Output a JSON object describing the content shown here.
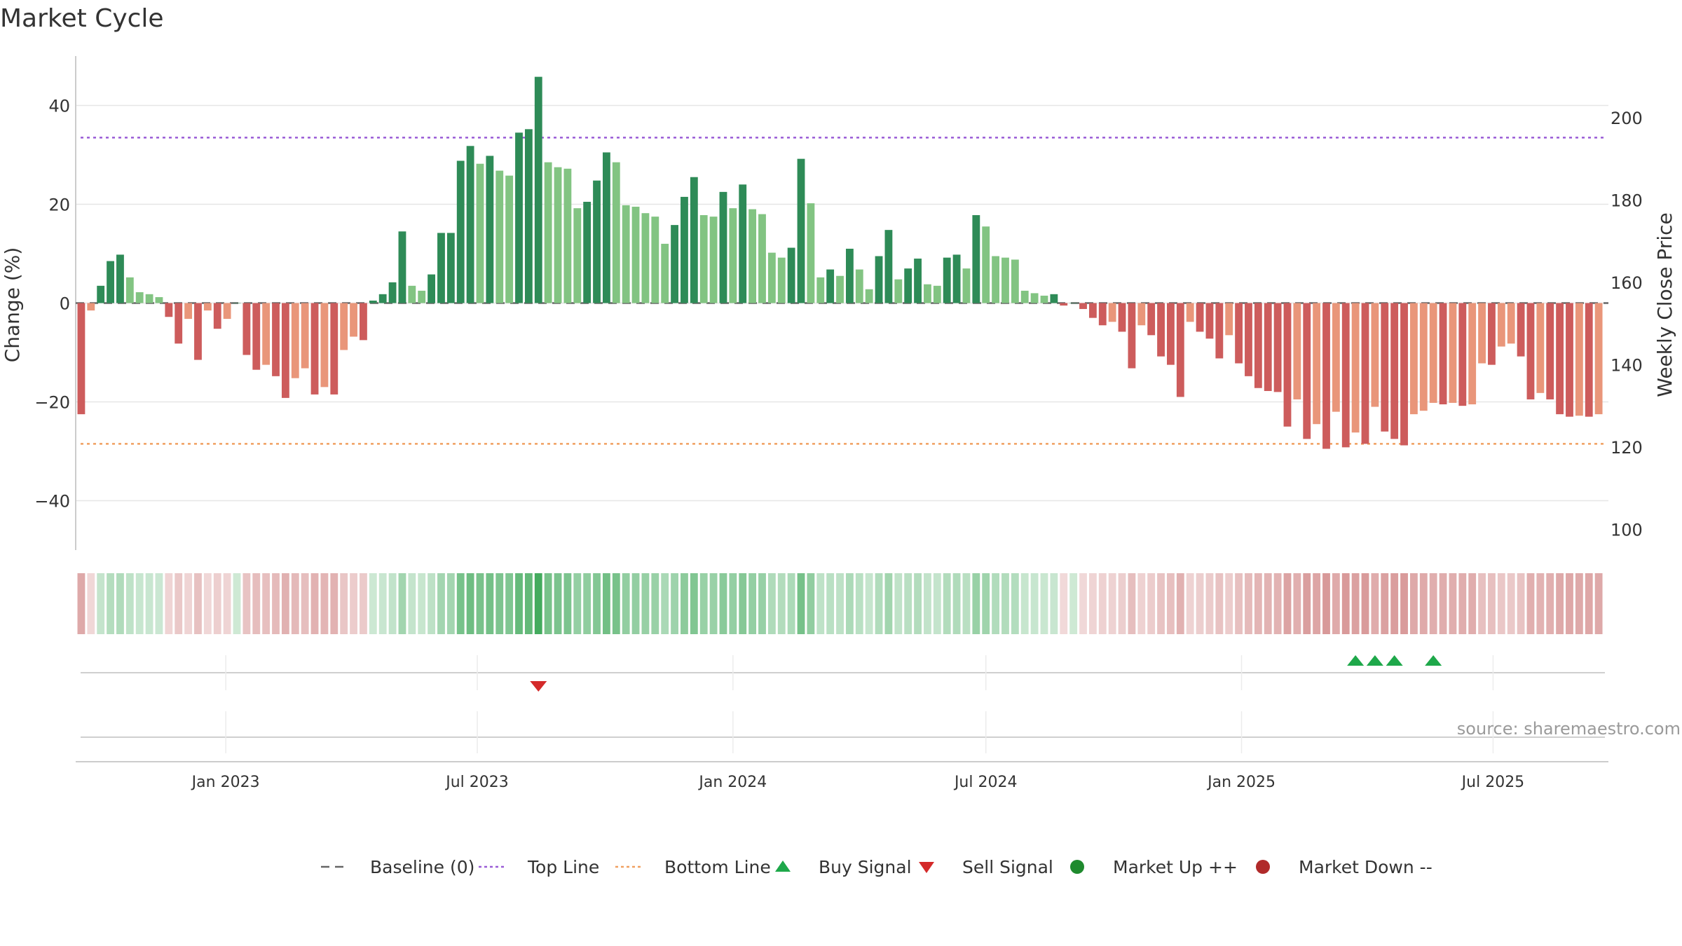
{
  "chart_data": {
    "type": "bar",
    "title": "Market Cycle",
    "ylabel": "Change (%)",
    "y2label": "Weekly Close Price",
    "ylim": [
      -50,
      50
    ],
    "y2lim": [
      95,
      215
    ],
    "yticks": [
      -40,
      -20,
      0,
      20,
      40
    ],
    "y2ticks": [
      100,
      120,
      140,
      160,
      180,
      200
    ],
    "xlim": [
      "2022-09-15",
      "2025-09-22"
    ],
    "xticks": [
      {
        "date": "2023-01-01",
        "label": "Jan 2023"
      },
      {
        "date": "2023-07-01",
        "label": "Jul 2023"
      },
      {
        "date": "2024-01-01",
        "label": "Jan 2024"
      },
      {
        "date": "2024-07-01",
        "label": "Jul 2024"
      },
      {
        "date": "2025-01-01",
        "label": "Jan 2025"
      },
      {
        "date": "2025-07-01",
        "label": "Jul 2025"
      }
    ],
    "start_week": "2022-09-19",
    "weeks_per_bar": 1,
    "series": [
      {
        "name": "Change (%)",
        "values": [
          -22.5,
          -1.5,
          3.5,
          8.5,
          9.8,
          5.2,
          2.2,
          1.8,
          1.2,
          -2.8,
          -8.2,
          -3.2,
          -11.5,
          -1.5,
          -5.2,
          -3.2,
          0,
          -10.5,
          -13.5,
          -12.5,
          -14.8,
          -19.2,
          -15.2,
          -13.2,
          -18.5,
          -17.0,
          -18.5,
          -9.5,
          -6.8,
          -7.5,
          0.5,
          1.8,
          4.2,
          14.5,
          3.5,
          2.5,
          5.8,
          14.2,
          14.2,
          28.8,
          31.8,
          28.2,
          29.8,
          26.8,
          25.8,
          34.5,
          35.2,
          45.8,
          28.5,
          27.5,
          27.2,
          19.2,
          20.5,
          24.8,
          30.5,
          28.5,
          19.8,
          19.5,
          18.2,
          17.5,
          12.0,
          15.8,
          21.5,
          25.5,
          17.8,
          17.5,
          22.5,
          19.2,
          24.0,
          19.0,
          18.0,
          10.2,
          9.2,
          11.2,
          29.2,
          20.2,
          5.2,
          6.8,
          5.5,
          11.0,
          6.8,
          2.8,
          9.5,
          14.8,
          4.8,
          7.0,
          9.0,
          3.8,
          3.5,
          9.2,
          9.8,
          7.0,
          17.8,
          15.5,
          9.5,
          9.2,
          8.8,
          2.5,
          2.0,
          1.5,
          1.8,
          -0.5,
          0,
          -1.2,
          -3.0,
          -4.5,
          -3.8,
          -5.8,
          -13.2,
          -4.5,
          -6.5,
          -10.8,
          -12.5,
          -19.0,
          -3.8,
          -5.8,
          -7.2,
          -11.2,
          -6.5,
          -12.2,
          -14.8,
          -17.2,
          -17.8,
          -18.0,
          -25.0,
          -19.5,
          -27.5,
          -24.5,
          -29.5,
          -22.0,
          -29.2,
          -26.2,
          -28.5,
          -21.0,
          -26.0,
          -27.5,
          -28.8,
          -22.5,
          -21.8,
          -20.2,
          -20.5,
          -20.2,
          -20.8,
          -20.5,
          -12.2,
          -12.5,
          -8.8,
          -8.2,
          -10.8,
          -19.5,
          -18.2,
          -19.5,
          -22.5,
          -23.0,
          -22.8,
          -23.0,
          -22.5
        ]
      }
    ],
    "reference_lines": [
      {
        "name": "Baseline (0)",
        "value": 0,
        "style": "dashed",
        "color": "#666666"
      },
      {
        "name": "Top Line",
        "value": 33.5,
        "style": "dotted",
        "color": "#9a5cd6"
      },
      {
        "name": "Bottom Line",
        "value": -28.5,
        "style": "dotted",
        "color": "#f0a060"
      }
    ],
    "signals": [
      {
        "type": "Sell Signal",
        "date": "2023-08-14"
      },
      {
        "type": "Buy Signal",
        "date": "2025-03-24"
      },
      {
        "type": "Buy Signal",
        "date": "2025-04-07"
      },
      {
        "type": "Buy Signal",
        "date": "2025-04-21"
      },
      {
        "type": "Buy Signal",
        "date": "2025-05-19"
      }
    ],
    "legend": {
      "placement": "bottom",
      "entries": [
        {
          "label": "Baseline (0)",
          "marker": "dash",
          "color": "#666666"
        },
        {
          "label": "Top Line",
          "marker": "dotted",
          "color": "#9a5cd6"
        },
        {
          "label": "Bottom Line",
          "marker": "dotted",
          "color": "#f0a060"
        },
        {
          "label": "Buy Signal",
          "marker": "triangle-up",
          "color": "#1ea84a"
        },
        {
          "label": "Sell Signal",
          "marker": "triangle-down",
          "color": "#d42a2a"
        },
        {
          "label": "Market Up ++",
          "marker": "circle",
          "color": "#1f8a2e"
        },
        {
          "label": "Market Down --",
          "marker": "circle",
          "color": "#b02a2a"
        }
      ]
    },
    "colors": {
      "strong_up": "#2e8b57",
      "mild_up": "#82c482",
      "strong_down": "#cd5c5c",
      "mild_down": "#e9967a",
      "heat_up": "#3aa655",
      "heat_down": "#c86e6e"
    },
    "grid": true
  },
  "watermark": "source: sharemaestro.com"
}
